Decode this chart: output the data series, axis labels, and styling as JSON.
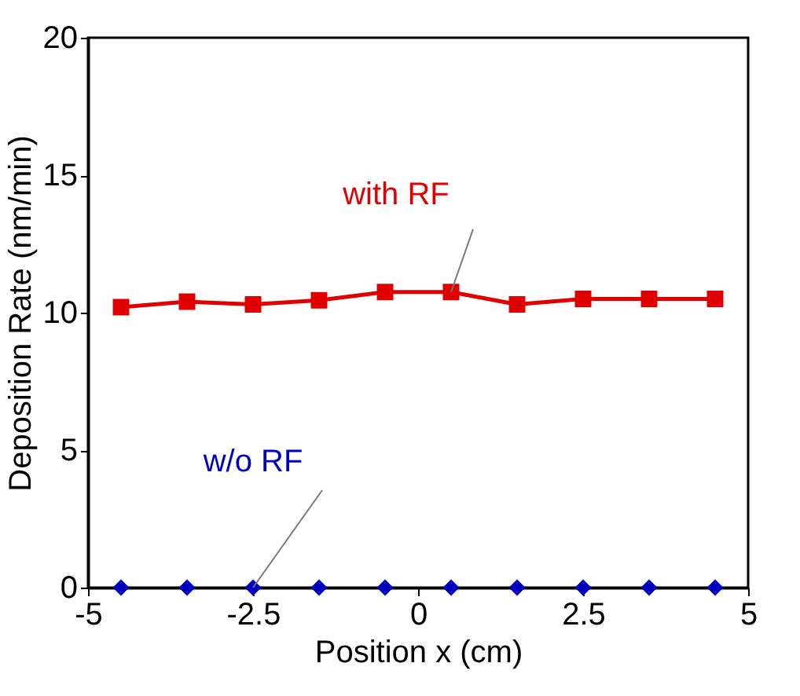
{
  "chart_data": {
    "type": "line",
    "xlabel": "Position x (cm)",
    "ylabel": "Deposition Rate (nm/min)",
    "x": [
      -4.5,
      -3.5,
      -2.5,
      -1.5,
      -0.5,
      0.5,
      1.5,
      2.5,
      3.5,
      4.5
    ],
    "series": [
      {
        "color": "#e00000",
        "marker": "square",
        "values": [
          10.2,
          10.4,
          10.3,
          10.45,
          10.75,
          10.75,
          10.3,
          10.5,
          10.5,
          10.5
        ]
      },
      {
        "color": "#0000c0",
        "type": "scatter",
        "marker": "diamond",
        "values": [
          0,
          0,
          0,
          0,
          0,
          0,
          0,
          0,
          0,
          0
        ]
      }
    ],
    "annotations": [
      {
        "text": "with RF",
        "x": 0.5,
        "y": 10.75
      },
      {
        "text": "w/o RF",
        "x": -2.5,
        "y": 0
      }
    ],
    "xlim": [
      -5,
      5
    ],
    "xticks": [
      -5,
      -2.5,
      0,
      2.5,
      5
    ],
    "ylim": [
      0,
      20
    ],
    "yticks": [
      0,
      5,
      10,
      15,
      20
    ],
    "grid": false
  }
}
